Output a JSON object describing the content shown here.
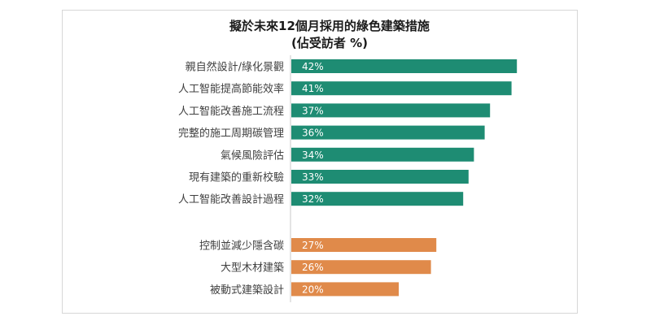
{
  "chart_data": {
    "type": "bar",
    "orientation": "horizontal",
    "title": "擬於未來12個月採用的綠色建築措施",
    "subtitle": "(佔受訪者 %)",
    "xlim": [
      0,
      50
    ],
    "grid": false,
    "colors": {
      "green": "#1e8c73",
      "orange": "#e08a4a"
    },
    "groups": [
      {
        "color": "green",
        "categories": [
          "親自然設計/綠化景觀",
          "人工智能提高節能效率",
          "人工智能改善施工流程",
          "完整的施工周期碳管理",
          "氣候風險評估",
          "現有建築的重新校驗",
          "人工智能改善設計過程"
        ],
        "values": [
          42,
          41,
          37,
          36,
          34,
          33,
          32
        ],
        "labels": [
          "42%",
          "41%",
          "37%",
          "36%",
          "34%",
          "33%",
          "32%"
        ]
      },
      {
        "color": "orange",
        "categories": [
          "控制並減少隱含碳",
          "大型木材建築",
          "被動式建築設計"
        ],
        "values": [
          27,
          26,
          20
        ],
        "labels": [
          "27%",
          "26%",
          "20%"
        ]
      }
    ]
  }
}
